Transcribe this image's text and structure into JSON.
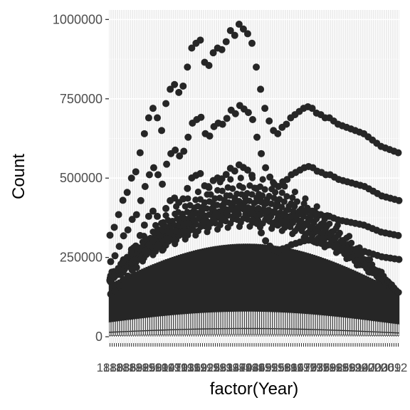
{
  "chart_data": {
    "type": "boxplot",
    "xlabel": "factor(Year)",
    "ylabel": "Count",
    "x_start": 1880,
    "x_end": 2014,
    "ylim": [
      -20000,
      1030000
    ],
    "yticks": [
      0,
      250000,
      500000,
      750000,
      1000000
    ],
    "ytick_labels": [
      "0",
      "250000",
      "500000",
      "750000",
      "1000000"
    ],
    "xtick_labels_visible": "1880 … 2014 (overlapping, illegible)",
    "grid": true,
    "legend": "none",
    "series": [
      {
        "name": "top_outliers",
        "years": [
          1880,
          1882,
          1884,
          1886,
          1888,
          1890,
          1892,
          1894,
          1896,
          1898,
          1900,
          1902,
          1904,
          1906,
          1908,
          1910,
          1912,
          1914,
          1916,
          1918,
          1920,
          1922,
          1924,
          1926,
          1928,
          1930,
          1932,
          1934,
          1936,
          1938,
          1940,
          1942,
          1944,
          1946,
          1948,
          1950,
          1952,
          1954,
          1956,
          1958,
          1960,
          1962,
          1964,
          1966,
          1968,
          1970,
          1972,
          1974,
          1976,
          1978,
          1980,
          1982,
          1984,
          1986,
          1988,
          1990,
          1992,
          1994,
          1996,
          1998,
          2000,
          2002,
          2004,
          2006,
          2008,
          2010,
          2012,
          2014
        ],
        "values": [
          320000,
          345000,
          385000,
          430000,
          455000,
          500000,
          520000,
          580000,
          640000,
          690000,
          720000,
          690000,
          650000,
          735000,
          780000,
          795000,
          770000,
          790000,
          850000,
          910000,
          925000,
          935000,
          865000,
          855000,
          895000,
          910000,
          905000,
          930000,
          965000,
          950000,
          985000,
          970000,
          955000,
          925000,
          850000,
          780000,
          720000,
          680000,
          650000,
          640000,
          660000,
          670000,
          690000,
          700000,
          710000,
          720000,
          725000,
          720000,
          705000,
          700000,
          690000,
          690000,
          680000,
          670000,
          665000,
          660000,
          655000,
          650000,
          645000,
          640000,
          630000,
          620000,
          610000,
          600000,
          595000,
          590000,
          585000,
          580000
        ]
      }
    ]
  }
}
